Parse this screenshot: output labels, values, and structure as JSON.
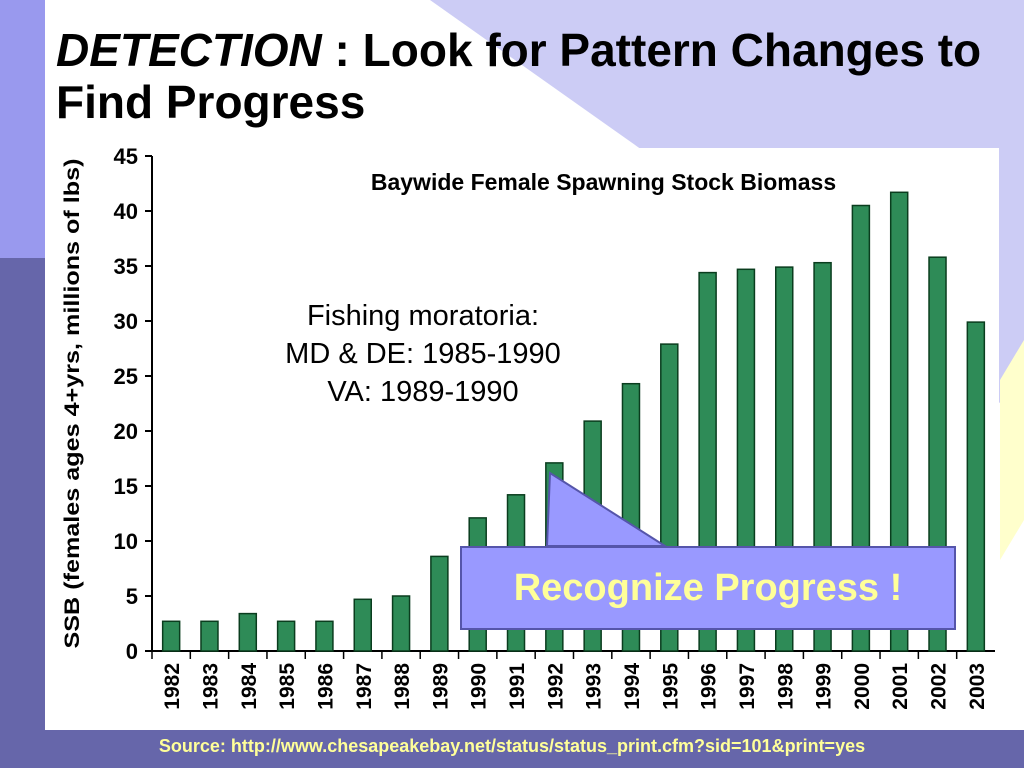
{
  "slide": {
    "title_emphasis": "DETECTION",
    "title_rest": " : Look for Pattern Changes to Find Progress",
    "callout": "Recognize Progress !",
    "source": "Source: http://www.chesapeakebay.net/status/status_print.cfm?sid=101&print=yes"
  },
  "colors": {
    "bar_fill": "#2e8b57",
    "bar_stroke": "#0a3d1e",
    "callout_fill": "#9999ff",
    "callout_text": "#ffff99",
    "accent_dark": "#6666aa",
    "accent_light": "#9999ee"
  },
  "chart_data": {
    "type": "bar",
    "title": "Baywide Female Spawning Stock Biomass",
    "ylabel": "SSB (females ages 4+yrs, millions of lbs)",
    "xlabel": "",
    "ylim": [
      0,
      45
    ],
    "yticks": [
      0,
      5,
      10,
      15,
      20,
      25,
      30,
      35,
      40,
      45
    ],
    "categories": [
      "1982",
      "1983",
      "1984",
      "1985",
      "1986",
      "1987",
      "1988",
      "1989",
      "1990",
      "1991",
      "1992",
      "1993",
      "1994",
      "1995",
      "1996",
      "1997",
      "1998",
      "1999",
      "2000",
      "2001",
      "2002",
      "2003"
    ],
    "values": [
      2.7,
      2.7,
      3.4,
      2.7,
      2.7,
      4.7,
      5.0,
      8.6,
      12.1,
      14.2,
      17.1,
      20.9,
      24.3,
      27.9,
      34.4,
      34.7,
      34.9,
      35.3,
      40.5,
      41.7,
      35.8,
      29.9
    ],
    "annotation_lines": [
      "Fishing moratoria:",
      "MD & DE:  1985-1990",
      "VA:  1989-1990"
    ],
    "grid": false,
    "legend": "none"
  }
}
